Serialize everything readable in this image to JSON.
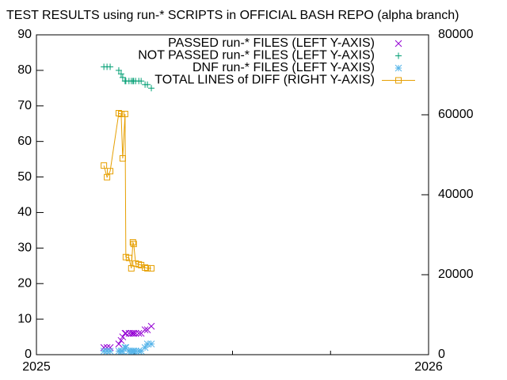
{
  "chart_data": {
    "type": "line",
    "title": "TEST RESULTS using run-* SCRIPTS in OFFICIAL BASH REPO (alpha branch)",
    "x": [
      2025.172,
      2025.18,
      2025.188,
      2025.21,
      2025.216,
      2025.22,
      2025.226,
      2025.228,
      2025.236,
      2025.242,
      2025.246,
      2025.248,
      2025.253,
      2025.261,
      2025.267,
      2025.277,
      2025.283,
      2025.293
    ],
    "series": [
      {
        "name": "PASSED run-* FILES (LEFT Y-AXIS)",
        "color": "#9400d3",
        "marker": "x",
        "values": [
          2,
          2,
          2,
          3,
          4,
          5,
          6,
          6,
          6,
          6,
          6,
          6,
          6,
          6,
          6,
          7,
          7,
          8
        ]
      },
      {
        "name": "NOT PASSED run-* FILES (LEFT Y-AXIS)",
        "color": "#009e73",
        "marker": "plus",
        "values": [
          81,
          81,
          81,
          80,
          79,
          78,
          77,
          77,
          77,
          77,
          77,
          77,
          77,
          77,
          77,
          76,
          76,
          75
        ]
      },
      {
        "name": "DNF run-* FILES (LEFT Y-AXIS)",
        "color": "#56b4e9",
        "marker": "star",
        "values": [
          1,
          1,
          1,
          1,
          1,
          1,
          2,
          2,
          1,
          1,
          1,
          1,
          1,
          1,
          1,
          2,
          3,
          3
        ]
      },
      {
        "name": "TOTAL LINES of DIFF (RIGHT Y-AXIS)",
        "color": "#e69f00",
        "marker": "square",
        "line": true,
        "axis": "y2",
        "values": [
          47300,
          44400,
          45900,
          60400,
          60200,
          49100,
          60200,
          24400,
          24200,
          21600,
          28100,
          27700,
          22800,
          22600,
          22400,
          21800,
          21600,
          21600
        ]
      }
    ],
    "xlim": [
      2025,
      2026
    ],
    "xticks": [
      2025,
      2026
    ],
    "xminorticks": [
      2025.25,
      2025.5,
      2025.75
    ],
    "ylim": [
      0,
      90
    ],
    "yticks": [
      0,
      10,
      20,
      30,
      40,
      50,
      60,
      70,
      80,
      90
    ],
    "y2lim": [
      0,
      80000
    ],
    "y2ticks": [
      0,
      20000,
      40000,
      60000,
      80000
    ],
    "legend": "top-right",
    "grid": false
  }
}
